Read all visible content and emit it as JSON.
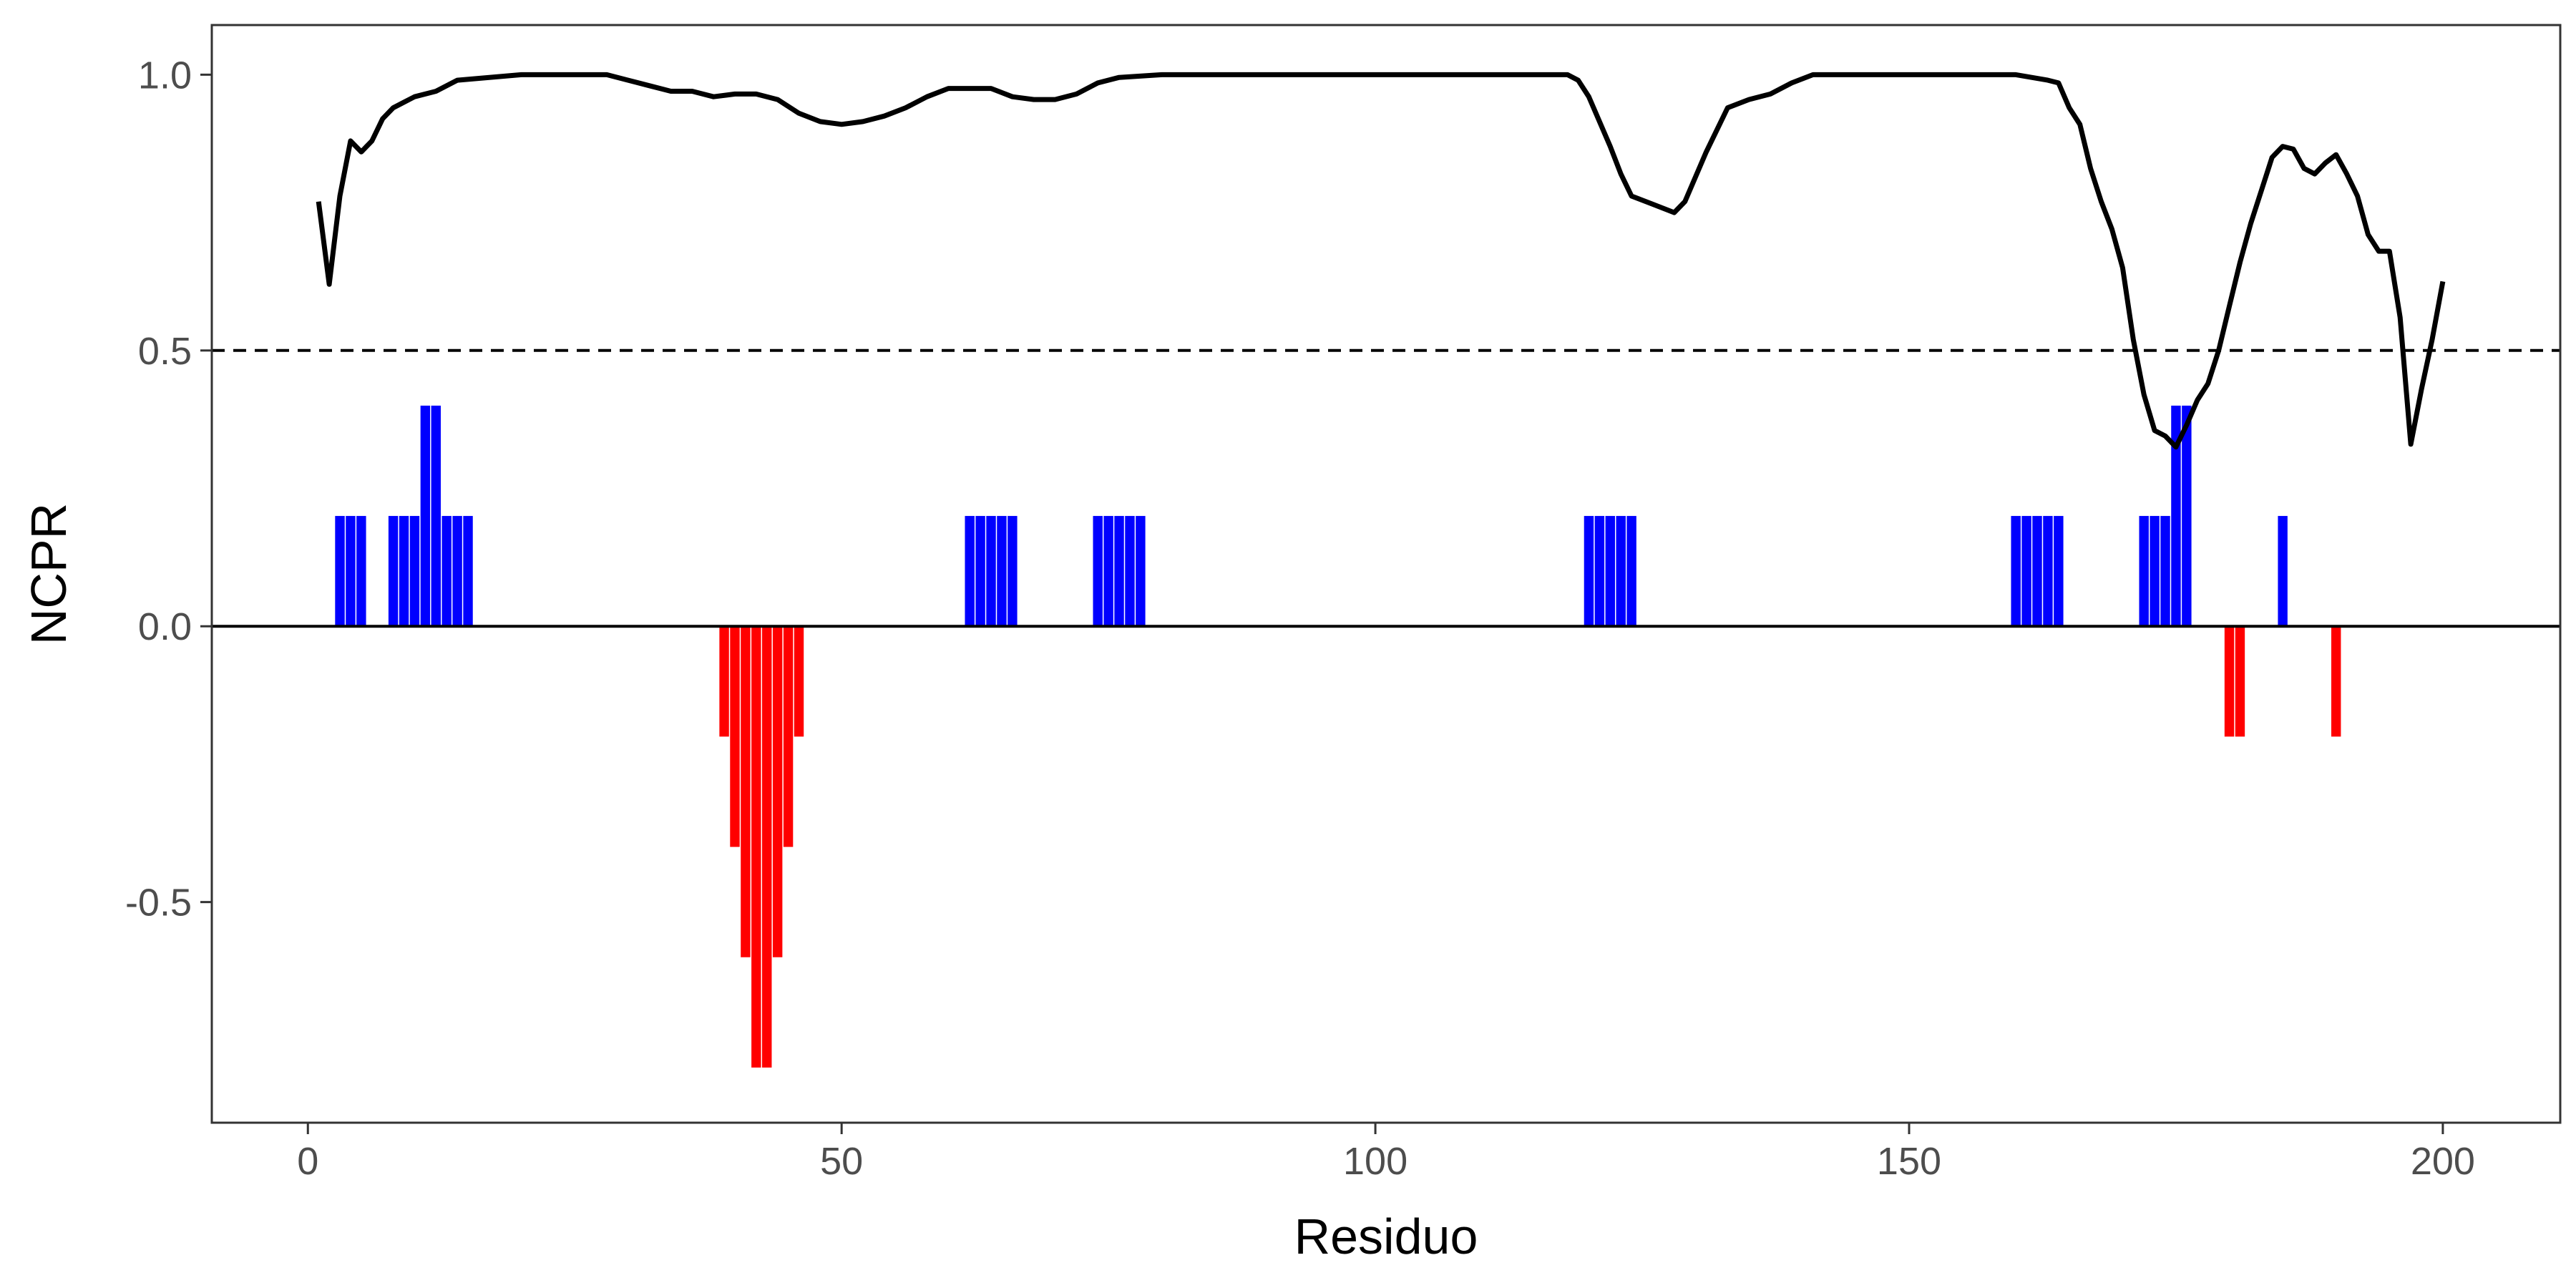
{
  "chart_data": {
    "type": "bar",
    "title": "",
    "xlabel": "Residuo",
    "ylabel": "NCPR",
    "xlim": [
      -9,
      211
    ],
    "ylim": [
      -0.9,
      1.09
    ],
    "x_ticks": [
      0,
      50,
      100,
      150,
      200
    ],
    "x_tick_labels": [
      "0",
      "50",
      "100",
      "150",
      "200"
    ],
    "y_ticks": [
      -0.5,
      0.0,
      0.5,
      1.0
    ],
    "y_tick_labels": [
      "-0.5",
      "0.0",
      "0.5",
      "1.0"
    ],
    "grid": false,
    "legend": "none",
    "reference_lines": [
      {
        "y": 0.0,
        "style": "solid",
        "color": "#000000"
      },
      {
        "y": 0.5,
        "style": "dashed",
        "color": "#000000"
      }
    ],
    "colors": {
      "positive": "#0000ff",
      "negative": "#ff0000",
      "line": "#000000",
      "panel_border": "#333333"
    },
    "series": [
      {
        "type": "bar",
        "points": [
          [
            3,
            0.2
          ],
          [
            4,
            0.2
          ],
          [
            5,
            0.2
          ],
          [
            8,
            0.2
          ],
          [
            9,
            0.2
          ],
          [
            10,
            0.2
          ],
          [
            11,
            0.4
          ],
          [
            12,
            0.4
          ],
          [
            13,
            0.2
          ],
          [
            14,
            0.2
          ],
          [
            15,
            0.2
          ],
          [
            39,
            -0.2
          ],
          [
            40,
            -0.4
          ],
          [
            41,
            -0.6
          ],
          [
            42,
            -0.8
          ],
          [
            43,
            -0.8
          ],
          [
            44,
            -0.6
          ],
          [
            45,
            -0.4
          ],
          [
            46,
            -0.2
          ],
          [
            62,
            0.2
          ],
          [
            63,
            0.2
          ],
          [
            64,
            0.2
          ],
          [
            65,
            0.2
          ],
          [
            66,
            0.2
          ],
          [
            74,
            0.2
          ],
          [
            75,
            0.2
          ],
          [
            76,
            0.2
          ],
          [
            77,
            0.2
          ],
          [
            78,
            0.2
          ],
          [
            120,
            0.2
          ],
          [
            121,
            0.2
          ],
          [
            122,
            0.2
          ],
          [
            123,
            0.2
          ],
          [
            124,
            0.2
          ],
          [
            160,
            0.2
          ],
          [
            161,
            0.2
          ],
          [
            162,
            0.2
          ],
          [
            163,
            0.2
          ],
          [
            164,
            0.2
          ],
          [
            172,
            0.2
          ],
          [
            173,
            0.2
          ],
          [
            174,
            0.2
          ],
          [
            175,
            0.4
          ],
          [
            176,
            0.4
          ],
          [
            180,
            -0.2
          ],
          [
            181,
            -0.2
          ],
          [
            185,
            0.2
          ],
          [
            190,
            -0.2
          ]
        ]
      },
      {
        "type": "line",
        "points": [
          [
            1,
            0.77
          ],
          [
            2,
            0.62
          ],
          [
            3,
            0.78
          ],
          [
            4,
            0.88
          ],
          [
            5,
            0.86
          ],
          [
            6,
            0.88
          ],
          [
            7,
            0.92
          ],
          [
            8,
            0.94
          ],
          [
            9,
            0.95
          ],
          [
            10,
            0.96
          ],
          [
            12,
            0.97
          ],
          [
            14,
            0.99
          ],
          [
            20,
            1.0
          ],
          [
            28,
            1.0
          ],
          [
            30,
            0.99
          ],
          [
            32,
            0.98
          ],
          [
            34,
            0.97
          ],
          [
            36,
            0.97
          ],
          [
            38,
            0.96
          ],
          [
            40,
            0.965
          ],
          [
            42,
            0.965
          ],
          [
            44,
            0.955
          ],
          [
            46,
            0.93
          ],
          [
            48,
            0.915
          ],
          [
            50,
            0.91
          ],
          [
            52,
            0.915
          ],
          [
            54,
            0.925
          ],
          [
            56,
            0.94
          ],
          [
            58,
            0.96
          ],
          [
            60,
            0.975
          ],
          [
            64,
            0.975
          ],
          [
            66,
            0.96
          ],
          [
            68,
            0.955
          ],
          [
            70,
            0.955
          ],
          [
            72,
            0.965
          ],
          [
            74,
            0.985
          ],
          [
            76,
            0.995
          ],
          [
            80,
            1.0
          ],
          [
            100,
            1.0
          ],
          [
            118,
            1.0
          ],
          [
            119,
            0.99
          ],
          [
            120,
            0.96
          ],
          [
            122,
            0.87
          ],
          [
            123,
            0.82
          ],
          [
            124,
            0.78
          ],
          [
            126,
            0.765
          ],
          [
            128,
            0.75
          ],
          [
            129,
            0.77
          ],
          [
            131,
            0.86
          ],
          [
            133,
            0.94
          ],
          [
            135,
            0.955
          ],
          [
            137,
            0.965
          ],
          [
            139,
            0.985
          ],
          [
            141,
            1.0
          ],
          [
            160,
            1.0
          ],
          [
            163,
            0.99
          ],
          [
            164,
            0.985
          ],
          [
            165,
            0.94
          ],
          [
            166,
            0.91
          ],
          [
            167,
            0.83
          ],
          [
            168,
            0.77
          ],
          [
            169,
            0.72
          ],
          [
            170,
            0.65
          ],
          [
            171,
            0.52
          ],
          [
            172,
            0.42
          ],
          [
            173,
            0.355
          ],
          [
            174,
            0.345
          ],
          [
            175,
            0.325
          ],
          [
            176,
            0.365
          ],
          [
            177,
            0.41
          ],
          [
            178,
            0.44
          ],
          [
            179,
            0.5
          ],
          [
            180,
            0.58
          ],
          [
            181,
            0.66
          ],
          [
            182,
            0.73
          ],
          [
            183,
            0.79
          ],
          [
            184,
            0.85
          ],
          [
            185,
            0.87
          ],
          [
            186,
            0.865
          ],
          [
            187,
            0.83
          ],
          [
            188,
            0.82
          ],
          [
            189,
            0.84
          ],
          [
            190,
            0.855
          ],
          [
            191,
            0.82
          ],
          [
            192,
            0.78
          ],
          [
            193,
            0.71
          ],
          [
            194,
            0.68
          ],
          [
            195,
            0.68
          ],
          [
            196,
            0.56
          ],
          [
            197,
            0.33
          ],
          [
            198,
            0.43
          ],
          [
            199,
            0.52
          ],
          [
            200,
            0.625
          ]
        ]
      }
    ]
  }
}
